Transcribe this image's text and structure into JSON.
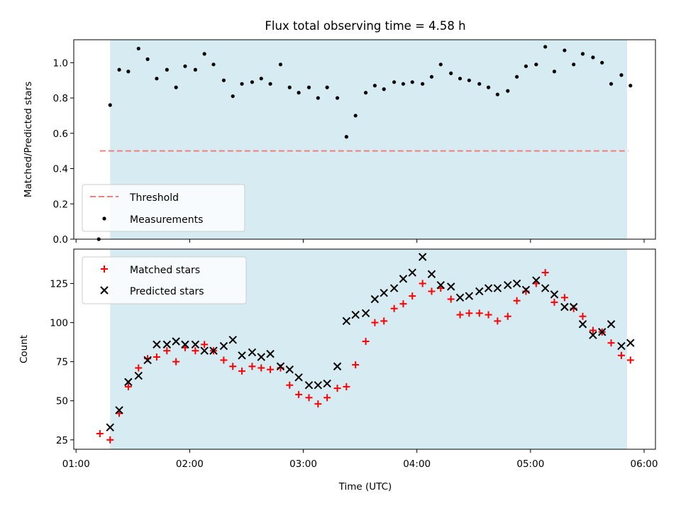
{
  "figure": {
    "title": "Flux total observing time = 4.58 h",
    "shaded_color": "#add8e6",
    "shaded_time_range": [
      "01:18",
      "05:51"
    ]
  },
  "chart_data": [
    {
      "type": "scatter",
      "ylabel": "Matched/Predicted stars",
      "ylim": [
        0.0,
        1.13
      ],
      "yticks": [
        0.0,
        0.2,
        0.4,
        0.6,
        0.8,
        1.0
      ],
      "ytick_labels": [
        "0.0",
        "0.2",
        "0.4",
        "0.6",
        "0.8",
        "1.0"
      ],
      "xlim_hours": [
        0.98,
        6.1
      ],
      "grid": false,
      "legend_position": "lower-left",
      "legend": [
        {
          "label": "Threshold",
          "style": "dashed-line",
          "color": "#f08080"
        },
        {
          "label": "Measurements",
          "style": "dot",
          "color": "#000000"
        }
      ],
      "threshold": {
        "value": 0.5,
        "x_start": 1.21,
        "x_end": 5.86,
        "color": "#f08080"
      },
      "series": [
        {
          "name": "Measurements",
          "color": "#000000",
          "x": [
            1.2,
            1.3,
            1.38,
            1.46,
            1.55,
            1.63,
            1.71,
            1.8,
            1.88,
            1.96,
            2.05,
            2.13,
            2.21,
            2.3,
            2.38,
            2.46,
            2.55,
            2.63,
            2.71,
            2.8,
            2.88,
            2.96,
            3.05,
            3.13,
            3.21,
            3.3,
            3.38,
            3.46,
            3.55,
            3.63,
            3.71,
            3.8,
            3.88,
            3.96,
            4.05,
            4.13,
            4.21,
            4.3,
            4.38,
            4.46,
            4.55,
            4.63,
            4.71,
            4.8,
            4.88,
            4.96,
            5.05,
            5.13,
            5.21,
            5.3,
            5.38,
            5.46,
            5.55,
            5.63,
            5.71,
            5.8,
            5.88
          ],
          "y": [
            0.0,
            0.76,
            0.96,
            0.95,
            1.08,
            1.02,
            0.91,
            0.96,
            0.86,
            0.98,
            0.96,
            1.05,
            0.99,
            0.9,
            0.81,
            0.88,
            0.89,
            0.91,
            0.88,
            0.99,
            0.86,
            0.83,
            0.86,
            0.8,
            0.86,
            0.8,
            0.58,
            0.7,
            0.83,
            0.87,
            0.85,
            0.89,
            0.88,
            0.89,
            0.88,
            0.92,
            0.99,
            0.94,
            0.91,
            0.9,
            0.88,
            0.86,
            0.82,
            0.84,
            0.92,
            0.98,
            0.99,
            1.09,
            0.95,
            1.07,
            0.99,
            1.05,
            1.03,
            1.0,
            0.88,
            0.93,
            0.87
          ]
        }
      ]
    },
    {
      "type": "scatter",
      "xlabel": "Time (UTC)",
      "ylabel": "Count",
      "ylim": [
        19,
        147
      ],
      "yticks": [
        25,
        50,
        75,
        100,
        125
      ],
      "ytick_labels": [
        "25",
        "50",
        "75",
        "100",
        "125"
      ],
      "xlim_hours": [
        0.98,
        6.1
      ],
      "xticks_hours": [
        1,
        2,
        3,
        4,
        5,
        6
      ],
      "xtick_labels": [
        "01:00",
        "02:00",
        "03:00",
        "04:00",
        "05:00",
        "06:00"
      ],
      "grid": false,
      "legend_position": "upper-left",
      "legend": [
        {
          "label": "Matched stars",
          "style": "plus",
          "color": "#ff0000"
        },
        {
          "label": "Predicted stars",
          "style": "cross",
          "color": "#000000"
        }
      ],
      "series": [
        {
          "name": "Matched stars",
          "color": "#ff0000",
          "x": [
            1.21,
            1.3,
            1.38,
            1.46,
            1.55,
            1.63,
            1.71,
            1.8,
            1.88,
            1.96,
            2.05,
            2.13,
            2.21,
            2.3,
            2.38,
            2.46,
            2.55,
            2.63,
            2.71,
            2.8,
            2.88,
            2.96,
            3.05,
            3.13,
            3.21,
            3.3,
            3.38,
            3.46,
            3.55,
            3.63,
            3.71,
            3.8,
            3.88,
            3.96,
            4.05,
            4.13,
            4.21,
            4.3,
            4.38,
            4.46,
            4.55,
            4.63,
            4.71,
            4.8,
            4.88,
            4.96,
            5.05,
            5.13,
            5.21,
            5.3,
            5.38,
            5.46,
            5.55,
            5.63,
            5.71,
            5.8,
            5.88
          ],
          "y": [
            29,
            25,
            42,
            59,
            71,
            77,
            78,
            82,
            75,
            84,
            82,
            86,
            82,
            76,
            72,
            69,
            72,
            71,
            70,
            71,
            60,
            54,
            52,
            48,
            52,
            58,
            59,
            73,
            88,
            100,
            101,
            109,
            112,
            117,
            125,
            120,
            122,
            115,
            105,
            106,
            106,
            105,
            101,
            104,
            114,
            120,
            125,
            132,
            113,
            116,
            109,
            104,
            95,
            94,
            87,
            79,
            76
          ]
        },
        {
          "name": "Predicted stars",
          "color": "#000000",
          "x": [
            1.3,
            1.38,
            1.46,
            1.55,
            1.63,
            1.71,
            1.8,
            1.88,
            1.96,
            2.05,
            2.13,
            2.21,
            2.3,
            2.38,
            2.46,
            2.55,
            2.63,
            2.71,
            2.8,
            2.88,
            2.96,
            3.05,
            3.13,
            3.21,
            3.3,
            3.38,
            3.46,
            3.55,
            3.63,
            3.71,
            3.8,
            3.88,
            3.96,
            4.05,
            4.13,
            4.21,
            4.3,
            4.38,
            4.46,
            4.55,
            4.63,
            4.71,
            4.8,
            4.88,
            4.96,
            5.05,
            5.13,
            5.21,
            5.3,
            5.38,
            5.46,
            5.55,
            5.63,
            5.71,
            5.8,
            5.88
          ],
          "y": [
            33,
            44,
            62,
            66,
            76,
            86,
            86,
            88,
            86,
            86,
            82,
            82,
            85,
            89,
            79,
            81,
            78,
            80,
            72,
            70,
            65,
            60,
            60,
            61,
            72,
            101,
            105,
            106,
            115,
            119,
            122,
            128,
            132,
            142,
            131,
            124,
            123,
            116,
            117,
            120,
            122,
            122,
            124,
            125,
            121,
            127,
            122,
            118,
            110,
            110,
            99,
            92,
            94,
            99,
            85,
            87
          ]
        }
      ]
    }
  ]
}
